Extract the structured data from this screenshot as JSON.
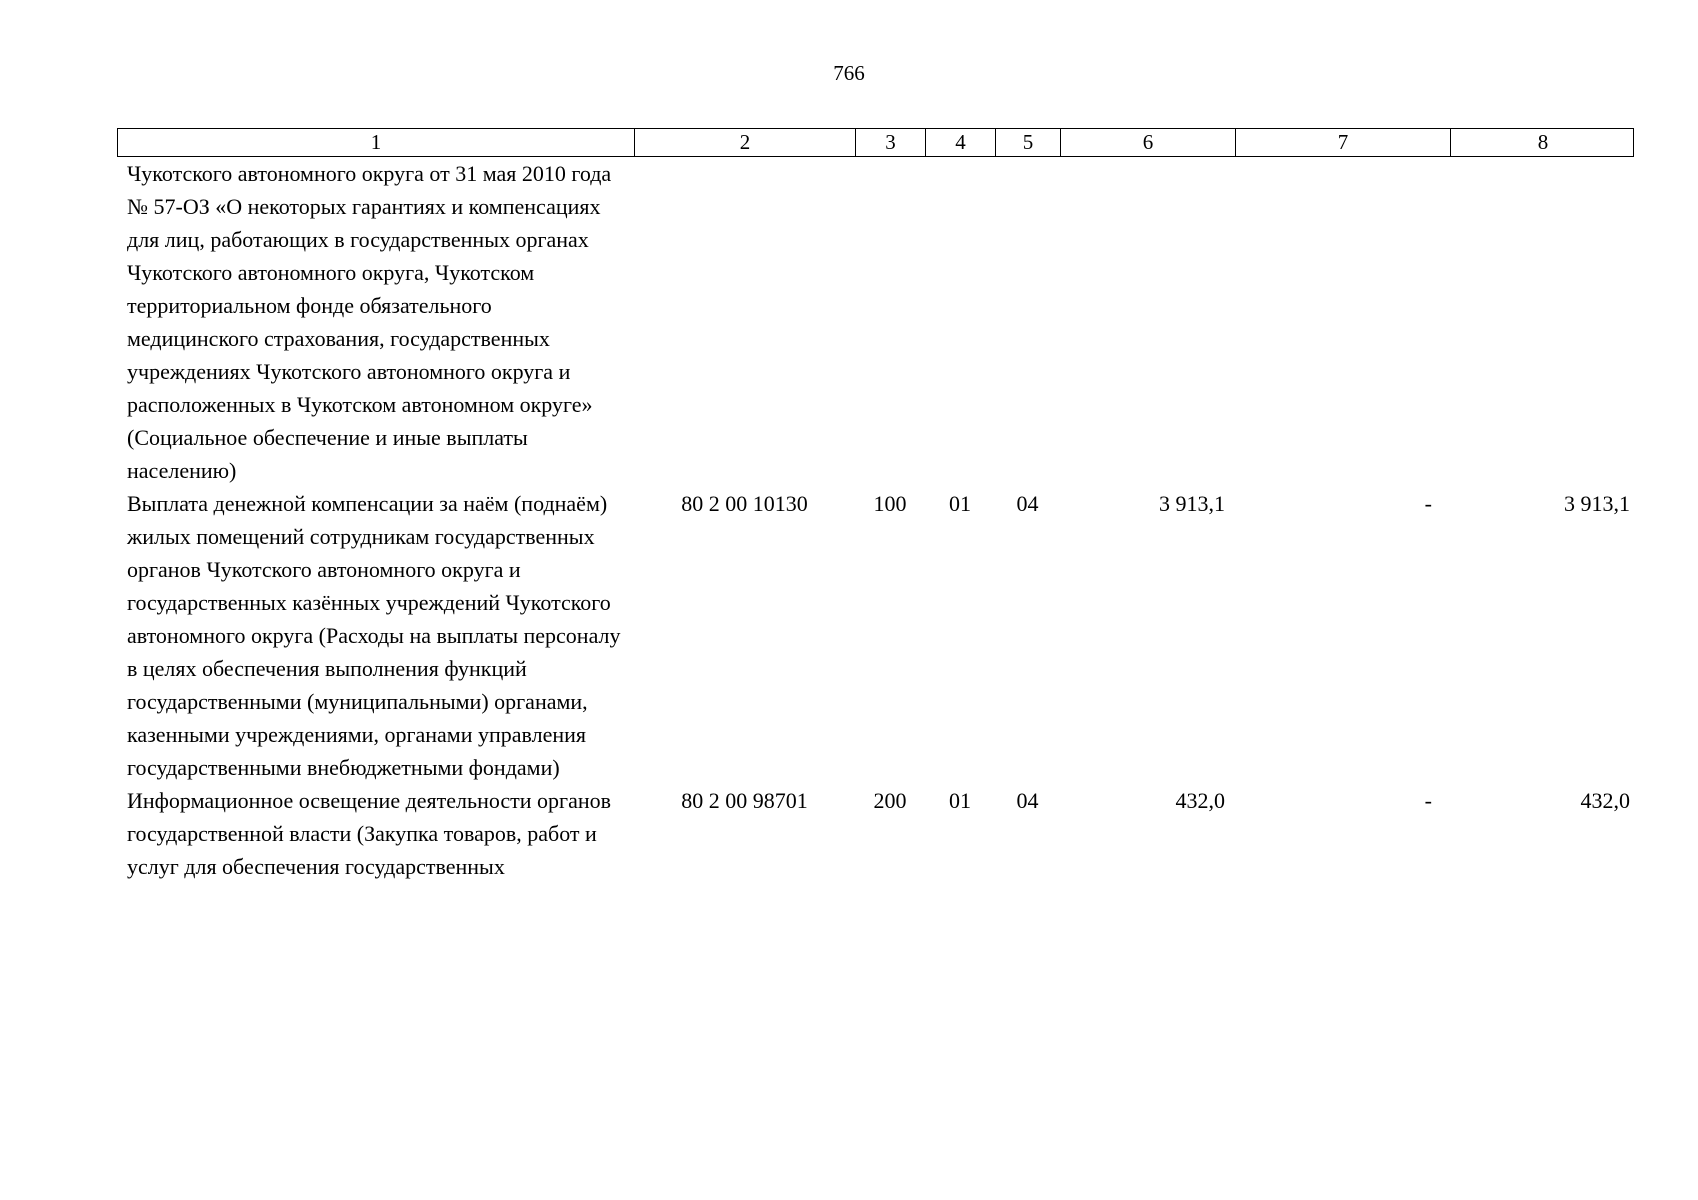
{
  "page": {
    "number": "766"
  },
  "table": {
    "headers": [
      "1",
      "2",
      "3",
      "4",
      "5",
      "6",
      "7",
      "8"
    ],
    "rows": [
      {
        "c1": "Чукотского автономного округа от 31 мая 2010 года № 57-ОЗ «О некоторых гарантиях и компенсациях для лиц, работающих в государственных органах Чукотского автономного округа, Чукотском территориальном фонде обязательного медицинского страхования, государственных учреждениях Чукотского автономного округа и расположенных в Чукотском автономном округе» (Социальное обеспечение и иные выплаты населению)",
        "c2": "",
        "c3": "",
        "c4": "",
        "c5": "",
        "c6": "",
        "c7": "",
        "c8": ""
      },
      {
        "c1": "Выплата денежной компенсации за наём (поднаём) жилых помещений сотрудникам государственных органов Чукотского автономного округа и государственных казённых учреждений Чукотского автономного округа (Расходы на выплаты персоналу в целях обеспечения выполнения функций государственными (муниципальными) органами, казенными учреждениями, органами управления государственными внебюджетными фондами)",
        "c2": "80 2 00 10130",
        "c3": "100",
        "c4": "01",
        "c5": "04",
        "c6": "3 913,1",
        "c7": "-",
        "c8": "3 913,1"
      },
      {
        "c1": "Информационное освещение деятельности органов государственной власти (Закупка товаров, работ и услуг для обеспечения государственных",
        "c2": "80 2 00 98701",
        "c3": "200",
        "c4": "01",
        "c5": "04",
        "c6": "432,0",
        "c7": "-",
        "c8": "432,0"
      }
    ]
  }
}
